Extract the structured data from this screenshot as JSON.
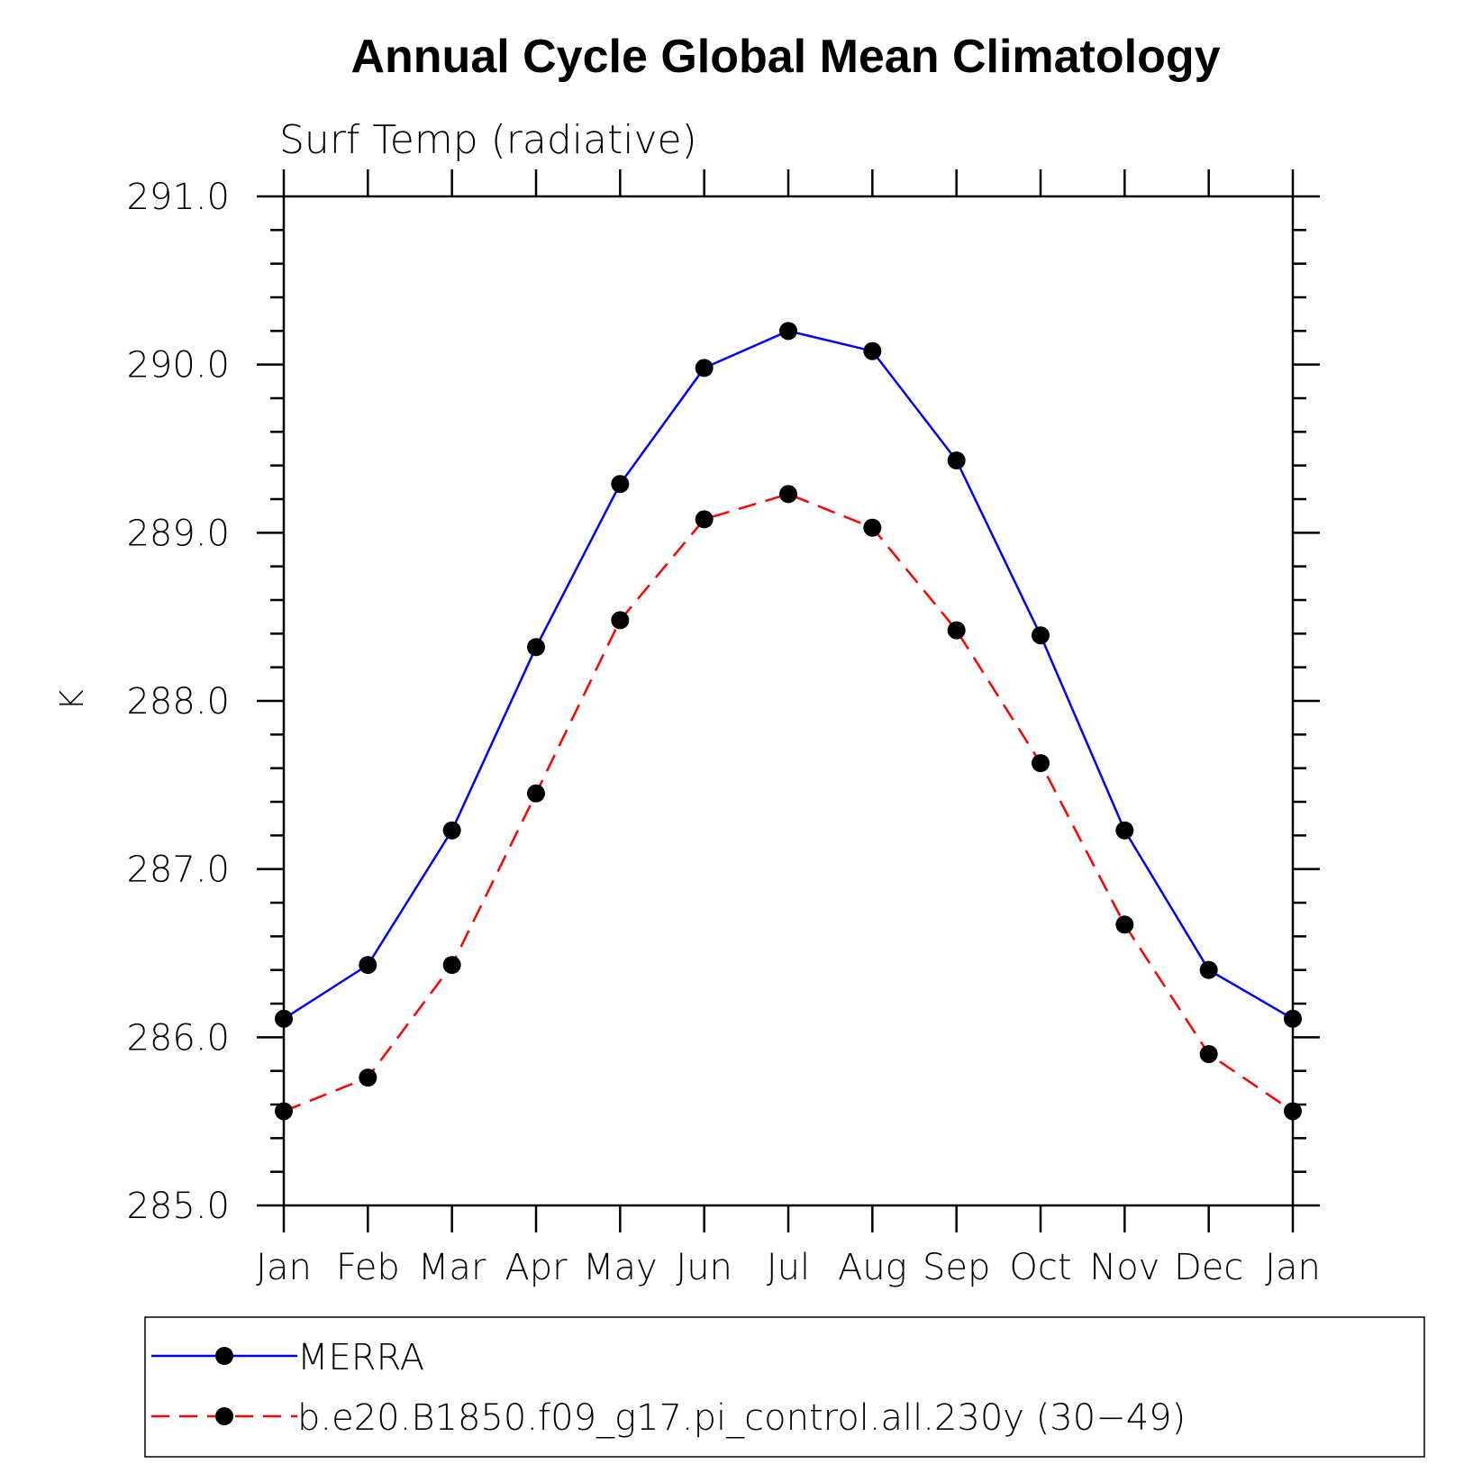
{
  "chart_data": {
    "type": "line",
    "title": "Annual Cycle Global Mean Climatology",
    "subtitle": "Surf Temp (radiative)",
    "xlabel": "",
    "ylabel": "K",
    "categories": [
      "Jan",
      "Feb",
      "Mar",
      "Apr",
      "May",
      "Jun",
      "Jul",
      "Aug",
      "Sep",
      "Oct",
      "Nov",
      "Dec",
      "Jan"
    ],
    "ylim": [
      285.0,
      291.0
    ],
    "yticks": [
      "285.0",
      "286.0",
      "287.0",
      "288.0",
      "289.0",
      "290.0",
      "291.0"
    ],
    "grid": false,
    "legend_position": "bottom",
    "series": [
      {
        "name": "MERRA",
        "color": "#0000ff",
        "dash": "solid",
        "values": [
          286.11,
          286.43,
          287.23,
          288.32,
          289.29,
          289.98,
          290.2,
          290.08,
          289.43,
          288.39,
          287.23,
          286.4,
          286.11
        ]
      },
      {
        "name": "b.e20.B1850.f09_g17.pi_control.all.230y (30−49)",
        "color": "#ff0000",
        "dash": "dashed",
        "values": [
          285.56,
          285.76,
          286.43,
          287.45,
          288.48,
          289.08,
          289.23,
          289.03,
          288.42,
          287.63,
          286.67,
          285.9,
          285.56
        ]
      }
    ]
  }
}
